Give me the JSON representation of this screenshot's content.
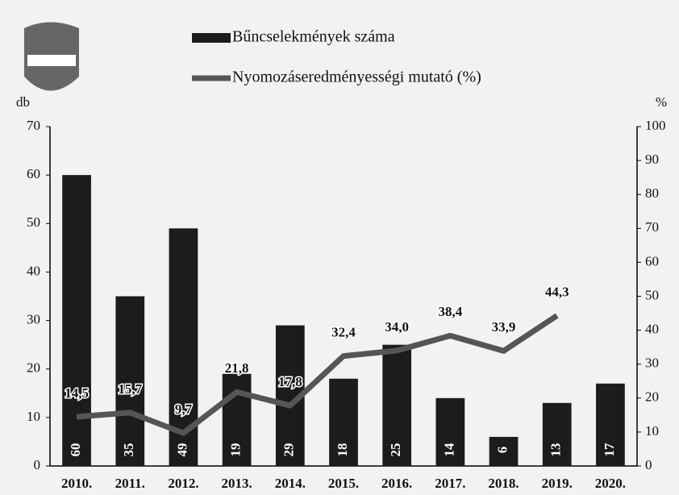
{
  "chart_data": {
    "type": "bar",
    "categories": [
      "2010.",
      "2011.",
      "2012.",
      "2013.",
      "2014.",
      "2015.",
      "2016.",
      "2017.",
      "2018.",
      "2019.",
      "2020."
    ],
    "series": [
      {
        "name": "Bűncselekmények száma",
        "type": "bar",
        "color": "#1c1c1c",
        "values": [
          60,
          35,
          49,
          19,
          29,
          18,
          25,
          14,
          6,
          13,
          17
        ]
      },
      {
        "name": "Nyomozáseredményességi mutató (%)",
        "type": "line",
        "axis": "y2",
        "color": "#555555",
        "values": [
          14.5,
          15.7,
          9.7,
          21.8,
          17.8,
          32.4,
          34.0,
          38.4,
          33.9,
          44.3,
          null
        ],
        "value_labels": [
          "14,5",
          "15,7",
          "9,7",
          "21,8",
          "17,8",
          "32,4",
          "34,0",
          "38,4",
          "33,9",
          "44,3",
          null
        ]
      }
    ],
    "ylabel": "db",
    "y2label": "%",
    "ylim": [
      0,
      70
    ],
    "yticks": [
      0,
      10,
      20,
      30,
      40,
      50,
      60,
      70
    ],
    "y2lim": [
      0,
      100
    ],
    "y2ticks": [
      0,
      10,
      20,
      30,
      40,
      50,
      60,
      70,
      80,
      90,
      100
    ]
  }
}
